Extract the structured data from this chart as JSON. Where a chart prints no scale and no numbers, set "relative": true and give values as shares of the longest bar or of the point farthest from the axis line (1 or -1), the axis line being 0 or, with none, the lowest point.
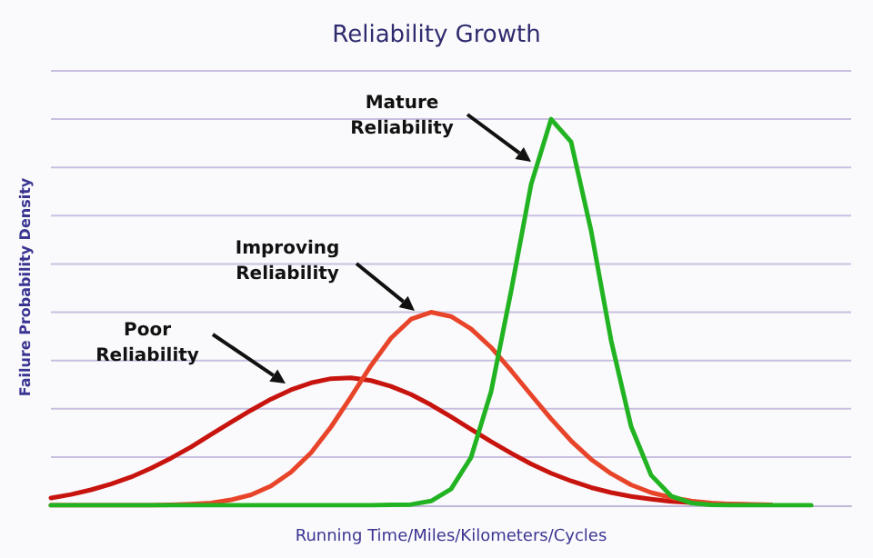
{
  "chart_data": {
    "type": "line",
    "title": "Reliability Growth",
    "xlabel": "Running Time/Miles/Kilometers/Cycles",
    "ylabel": "Failure Probability Density",
    "relative": true,
    "grid": "y",
    "marker": "none",
    "line_style": "solid",
    "categories": [
      null,
      null,
      null,
      null,
      null,
      null,
      null,
      null,
      null,
      null,
      null,
      null,
      null,
      null,
      null,
      null,
      null,
      null,
      null,
      null,
      null,
      null,
      null,
      null,
      null,
      null,
      null,
      null,
      null,
      null,
      null,
      null,
      null,
      null,
      null,
      null,
      null,
      null,
      null,
      null,
      null
    ],
    "series": [
      {
        "name": "Poor Reliability",
        "color": "#c8140e",
        "values": [
          0.019,
          0.028,
          0.04,
          0.055,
          0.073,
          0.096,
          0.122,
          0.151,
          0.183,
          0.215,
          0.246,
          0.275,
          0.299,
          0.317,
          0.328,
          0.33,
          0.323,
          0.308,
          0.287,
          0.26,
          0.229,
          0.197,
          0.165,
          0.135,
          0.107,
          0.083,
          0.063,
          0.046,
          0.033,
          0.023,
          0.016,
          0.01,
          0.007,
          0.004,
          0.003,
          0.002,
          0.001,
          null,
          null,
          null,
          null
        ]
      },
      {
        "name": "Improving Reliability",
        "color": "#e8442a",
        "values": [
          0,
          0,
          0,
          0,
          0,
          0,
          0.001,
          0.003,
          0.006,
          0.014,
          0.027,
          0.05,
          0.086,
          0.136,
          0.203,
          0.281,
          0.362,
          0.433,
          0.482,
          0.5,
          0.489,
          0.457,
          0.409,
          0.349,
          0.286,
          0.224,
          0.167,
          0.119,
          0.082,
          0.053,
          0.033,
          0.02,
          0.011,
          0.006,
          0.003,
          0.002,
          0.001,
          null,
          null,
          null,
          null
        ]
      },
      {
        "name": "Mature Reliability",
        "color": "#22b322",
        "values": [
          0,
          0,
          0,
          0,
          0,
          0,
          0,
          0,
          0,
          0,
          0,
          0,
          0,
          0,
          0,
          0,
          0,
          0.001,
          0.002,
          0.011,
          0.042,
          0.124,
          0.294,
          0.554,
          0.831,
          1,
          0.941,
          0.711,
          0.427,
          0.204,
          0.078,
          0.024,
          0.006,
          0.001,
          0,
          0,
          0,
          0,
          0,
          null,
          null
        ]
      }
    ]
  }
}
